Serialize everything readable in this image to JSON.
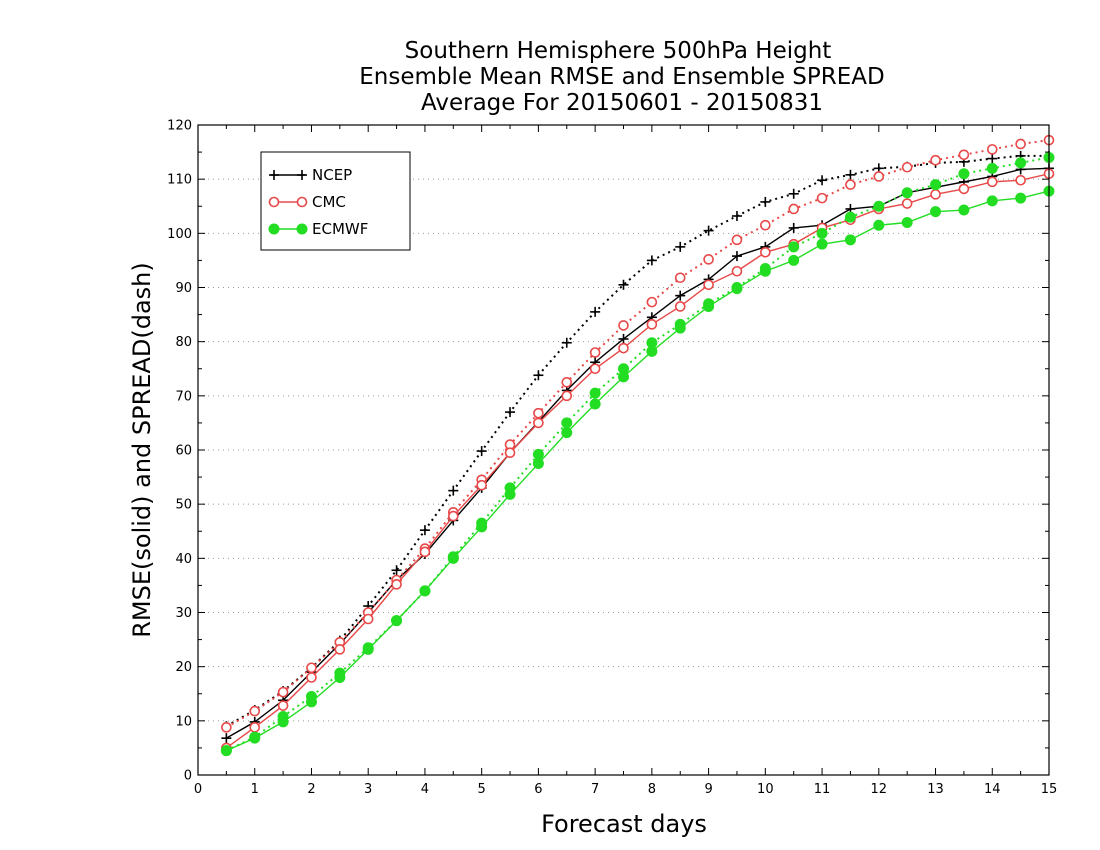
{
  "chart_data": {
    "type": "line",
    "title_lines": [
      "Southern Hemisphere 500hPa Height",
      "Ensemble Mean RMSE and Ensemble SPREAD",
      "Average For 20150601 - 20150831"
    ],
    "xlabel": "Forecast days",
    "ylabel": "RMSE(solid) and SPREAD(dash)",
    "xlim": [
      0,
      15
    ],
    "ylim": [
      0,
      120
    ],
    "x_ticks": [
      0,
      1,
      2,
      3,
      4,
      5,
      6,
      7,
      8,
      9,
      10,
      11,
      12,
      13,
      14,
      15
    ],
    "y_ticks": [
      0,
      10,
      20,
      30,
      40,
      50,
      60,
      70,
      80,
      90,
      100,
      110,
      120
    ],
    "grid": "horizontal dotted",
    "legend_position": "top-left",
    "x": [
      0.5,
      1,
      1.5,
      2,
      2.5,
      3,
      3.5,
      4,
      4.5,
      5,
      5.5,
      6,
      6.5,
      7,
      7.5,
      8,
      8.5,
      9,
      9.5,
      10,
      10.5,
      11,
      11.5,
      12,
      12.5,
      13,
      13.5,
      14,
      14.5,
      15
    ],
    "series": [
      {
        "name": "NCEP",
        "color": "#000000",
        "marker": "plus",
        "rmse": [
          6.8,
          9.8,
          13.8,
          19.0,
          24.2,
          30.0,
          36.0,
          40.8,
          47.0,
          53.0,
          59.5,
          65.2,
          71.0,
          76.2,
          80.5,
          84.5,
          88.5,
          91.5,
          95.8,
          97.5,
          101.0,
          101.5,
          104.5,
          105.0,
          107.5,
          108.5,
          109.5,
          110.5,
          111.8,
          112.0
        ],
        "spread": [
          9.0,
          12.0,
          15.5,
          19.8,
          24.8,
          31.2,
          37.8,
          45.2,
          52.5,
          59.8,
          67.0,
          73.8,
          79.8,
          85.5,
          90.5,
          95.0,
          97.5,
          100.5,
          103.2,
          105.8,
          107.3,
          109.8,
          110.8,
          112.0,
          112.3,
          113.0,
          113.2,
          113.8,
          114.3,
          114.3
        ]
      },
      {
        "name": "CMC",
        "color": "#e84848",
        "marker": "open-circle",
        "rmse": [
          5.0,
          8.8,
          12.8,
          18.0,
          23.2,
          28.8,
          35.2,
          41.2,
          47.8,
          53.5,
          59.5,
          65.0,
          70.0,
          75.0,
          78.8,
          83.2,
          86.5,
          90.5,
          93.0,
          96.5,
          98.0,
          101.0,
          102.5,
          104.5,
          105.5,
          107.2,
          108.2,
          109.5,
          109.8,
          111.0
        ],
        "spread": [
          8.8,
          11.8,
          15.3,
          19.8,
          24.5,
          30.0,
          36.0,
          41.8,
          48.5,
          54.5,
          61.0,
          66.8,
          72.5,
          78.0,
          83.0,
          87.3,
          91.8,
          95.2,
          98.8,
          101.5,
          104.5,
          106.5,
          109.0,
          110.5,
          112.2,
          113.5,
          114.5,
          115.5,
          116.5,
          117.2
        ]
      },
      {
        "name": "ECMWF",
        "color": "#22dd22",
        "marker": "filled-circle",
        "rmse": [
          4.5,
          6.8,
          9.8,
          13.5,
          18.0,
          23.2,
          28.5,
          34.0,
          40.0,
          45.8,
          51.8,
          57.5,
          63.2,
          68.5,
          73.5,
          78.2,
          82.5,
          86.5,
          89.8,
          93.0,
          95.0,
          98.0,
          98.8,
          101.5,
          102.0,
          104.0,
          104.3,
          106.0,
          106.5,
          107.8
        ],
        "spread": [
          4.5,
          7.0,
          10.8,
          14.5,
          18.8,
          23.5,
          28.5,
          34.0,
          40.3,
          46.5,
          53.0,
          59.2,
          65.0,
          70.5,
          75.0,
          79.8,
          83.2,
          87.0,
          90.0,
          93.5,
          97.5,
          100.0,
          103.0,
          105.0,
          107.5,
          109.0,
          111.0,
          112.0,
          113.0,
          114.0
        ]
      }
    ]
  }
}
